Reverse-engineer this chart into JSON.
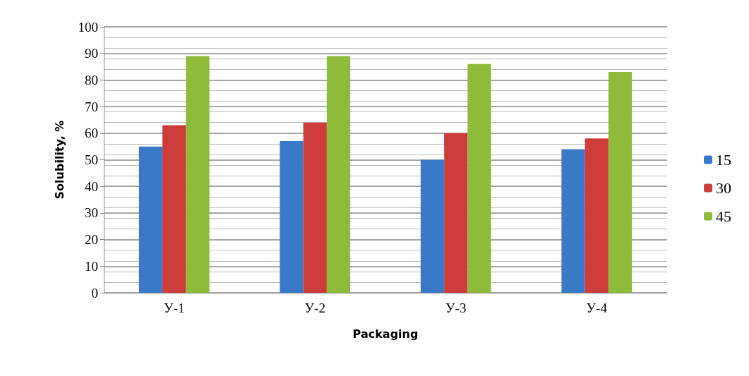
{
  "chart_data": {
    "type": "bar",
    "xlabel": "Packaging",
    "ylabel": "Solubility, %",
    "categories": [
      "У-1",
      "У-2",
      "У-3",
      "У-4"
    ],
    "series": [
      {
        "name": "15",
        "color": "#3a78c8",
        "values": [
          55,
          57,
          50,
          54
        ]
      },
      {
        "name": "30",
        "color": "#cc3c3a",
        "values": [
          63,
          64,
          60,
          58
        ]
      },
      {
        "name": "45",
        "color": "#8fbb3a",
        "values": [
          89,
          89,
          86,
          83
        ]
      }
    ],
    "ylim": [
      0,
      100
    ],
    "yticks": [
      0,
      10,
      20,
      30,
      40,
      50,
      60,
      70,
      80,
      90,
      100
    ],
    "grid": true,
    "legend": "right"
  }
}
